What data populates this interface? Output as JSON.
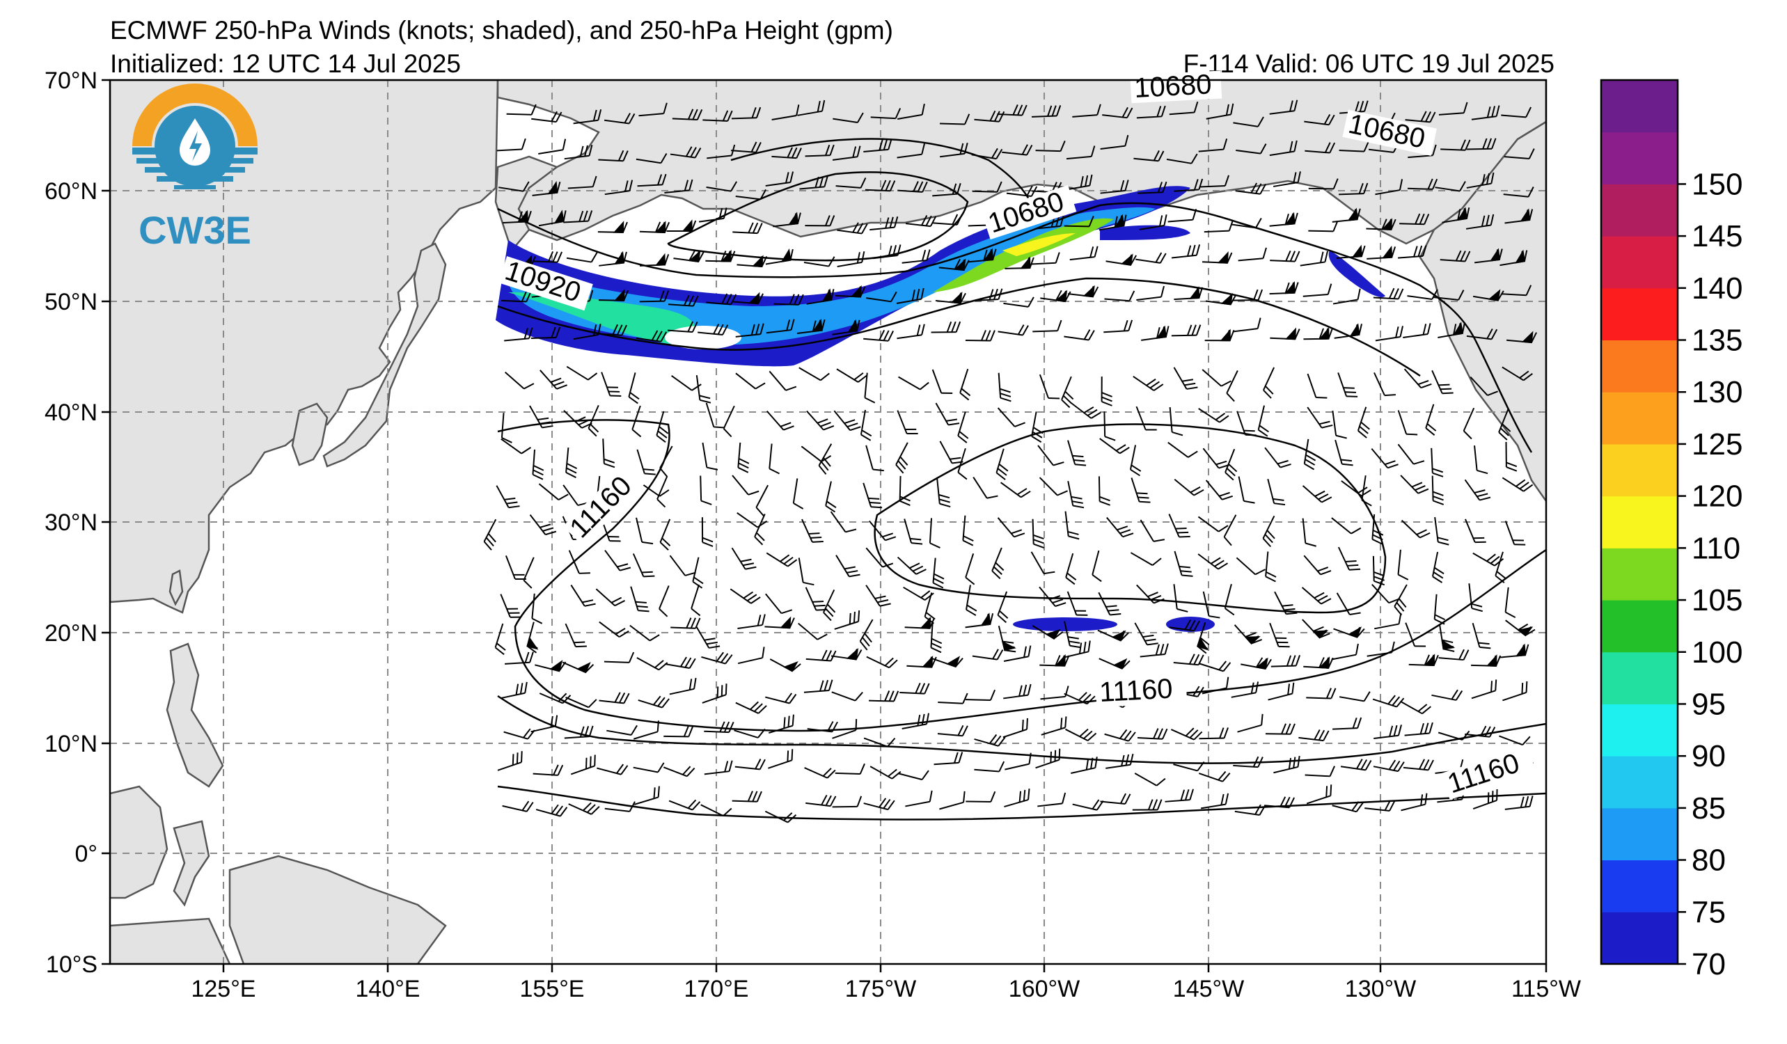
{
  "header": {
    "title": "ECMWF 250-hPa Winds (knots; shaded), and 250-hPa Height (gpm)",
    "initialized": "Initialized: 12 UTC 14 Jul 2025",
    "valid": "F-114  Valid: 06 UTC 19 Jul 2025"
  },
  "logo": {
    "text": "CW3E",
    "colors": {
      "sun": "#f4a224",
      "water": "#2e8fbd",
      "text": "#2f8fc0"
    }
  },
  "axes": {
    "lat_labels": [
      "70°N",
      "60°N",
      "50°N",
      "40°N",
      "30°N",
      "20°N",
      "10°N",
      "0°",
      "10°S"
    ],
    "lon_labels": [
      "125°E",
      "140°E",
      "155°E",
      "170°E",
      "175°W",
      "160°W",
      "145°W",
      "130°W",
      "115°W"
    ]
  },
  "contours": {
    "labels": [
      "10680",
      "10680",
      "10680",
      "10920",
      "11160",
      "11160",
      "11160"
    ]
  },
  "colorbar": {
    "ticks": [
      "70",
      "75",
      "80",
      "85",
      "90",
      "95",
      "100",
      "105",
      "110",
      "120",
      "125",
      "130",
      "135",
      "140",
      "145",
      "150"
    ],
    "colors": [
      "#1c1cc8",
      "#1a3cf0",
      "#1e9bf5",
      "#22c8f0",
      "#1ef0f0",
      "#22e0a0",
      "#23c02a",
      "#7dd820",
      "#f8f51e",
      "#fcd01e",
      "#fca01e",
      "#fc7a1e",
      "#fc1e1e",
      "#d81e44",
      "#b01e60",
      "#8c1e8c",
      "#6c1e8c"
    ]
  },
  "colors": {
    "land": "#e3e3e3",
    "ocean": "#ffffff",
    "grid": "#808080"
  }
}
